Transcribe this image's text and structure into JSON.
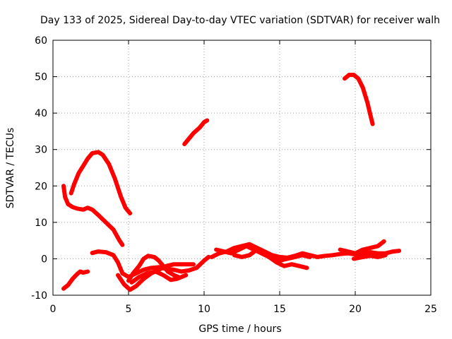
{
  "chart_data": {
    "type": "line",
    "title": "Day 133 of 2025, Sidereal Day-to-day VTEC variation (SDTVAR) for receiver walh",
    "xlabel": "GPS time / hours",
    "ylabel": "SDTVAR / TECUs",
    "xlim": [
      0,
      25
    ],
    "ylim": [
      -10,
      60
    ],
    "xticks": [
      "0",
      "5",
      "10",
      "15",
      "20",
      "25"
    ],
    "yticks": [
      "-10",
      "0",
      "10",
      "20",
      "30",
      "40",
      "50",
      "60"
    ],
    "grid": true,
    "series_color": "#ff0000",
    "series": [
      {
        "name": "arc-1",
        "points": [
          [
            0.7,
            -8.2
          ],
          [
            1.0,
            -7.2
          ],
          [
            1.3,
            -5.5
          ],
          [
            1.6,
            -4.2
          ],
          [
            1.8,
            -3.5
          ],
          [
            2.0,
            -3.8
          ],
          [
            2.3,
            -3.5
          ]
        ]
      },
      {
        "name": "arc-2",
        "points": [
          [
            0.7,
            20.0
          ],
          [
            0.8,
            17.0
          ],
          [
            1.0,
            15.0
          ],
          [
            1.3,
            14.2
          ],
          [
            1.6,
            13.8
          ],
          [
            2.0,
            13.5
          ],
          [
            2.3,
            14.0
          ],
          [
            2.6,
            13.5
          ],
          [
            3.0,
            12.0
          ],
          [
            3.5,
            10.0
          ],
          [
            4.0,
            8.0
          ],
          [
            4.4,
            5.0
          ],
          [
            4.6,
            3.8
          ]
        ]
      },
      {
        "name": "arc-3",
        "points": [
          [
            1.2,
            18.0
          ],
          [
            1.4,
            20.5
          ],
          [
            1.7,
            23.5
          ],
          [
            2.0,
            25.5
          ],
          [
            2.3,
            27.5
          ],
          [
            2.6,
            29.0
          ],
          [
            3.0,
            29.3
          ],
          [
            3.3,
            28.5
          ],
          [
            3.7,
            26.0
          ],
          [
            4.1,
            22.0
          ],
          [
            4.5,
            17.0
          ],
          [
            4.8,
            14.0
          ],
          [
            5.1,
            12.5
          ]
        ]
      },
      {
        "name": "arc-4",
        "points": [
          [
            2.6,
            1.6
          ],
          [
            3.0,
            2.0
          ],
          [
            3.5,
            1.8
          ],
          [
            4.0,
            1.0
          ],
          [
            4.3,
            -1.0
          ],
          [
            4.6,
            -4.0
          ],
          [
            5.0,
            -5.0
          ],
          [
            5.5,
            -4.0
          ],
          [
            6.0,
            -3.0
          ],
          [
            6.5,
            -2.5
          ],
          [
            7.0,
            -2.3
          ],
          [
            7.5,
            -2.8
          ],
          [
            8.0,
            -3.0
          ],
          [
            8.5,
            -3.5
          ],
          [
            9.0,
            -3.2
          ],
          [
            9.5,
            -2.5
          ],
          [
            10.0,
            -0.5
          ],
          [
            10.3,
            0.5
          ]
        ]
      },
      {
        "name": "arc-5",
        "points": [
          [
            4.3,
            -4.5
          ],
          [
            4.7,
            -7.0
          ],
          [
            5.1,
            -8.5
          ],
          [
            5.5,
            -7.5
          ],
          [
            6.0,
            -5.5
          ],
          [
            6.5,
            -4.0
          ],
          [
            7.0,
            -3.0
          ],
          [
            7.5,
            -2.0
          ],
          [
            8.0,
            -1.5
          ],
          [
            8.5,
            -1.5
          ],
          [
            9.0,
            -1.5
          ],
          [
            9.3,
            -1.5
          ]
        ]
      },
      {
        "name": "arc-6",
        "points": [
          [
            5.0,
            -6.0
          ],
          [
            5.3,
            -4.0
          ],
          [
            5.7,
            -2.0
          ],
          [
            6.0,
            0.0
          ],
          [
            6.3,
            0.8
          ],
          [
            6.7,
            0.5
          ],
          [
            7.0,
            -0.5
          ],
          [
            7.3,
            -2.0
          ],
          [
            7.6,
            -3.5
          ],
          [
            8.0,
            -4.5
          ],
          [
            8.3,
            -5.0
          ]
        ]
      },
      {
        "name": "arc-7",
        "points": [
          [
            5.2,
            -6.5
          ],
          [
            5.7,
            -5.0
          ],
          [
            6.2,
            -4.0
          ],
          [
            6.8,
            -3.5
          ],
          [
            7.3,
            -4.5
          ],
          [
            7.8,
            -5.8
          ],
          [
            8.2,
            -5.5
          ],
          [
            8.8,
            -4.5
          ]
        ]
      },
      {
        "name": "arc-8",
        "points": [
          [
            8.7,
            31.5
          ],
          [
            9.0,
            33.0
          ],
          [
            9.3,
            34.5
          ],
          [
            9.7,
            36.0
          ],
          [
            10.0,
            37.5
          ],
          [
            10.2,
            38.0
          ]
        ]
      },
      {
        "name": "arc-9",
        "points": [
          [
            10.5,
            0.5
          ],
          [
            11.0,
            1.5
          ],
          [
            11.5,
            2.0
          ],
          [
            12.0,
            3.0
          ],
          [
            12.5,
            3.5
          ],
          [
            13.0,
            4.0
          ],
          [
            13.5,
            3.0
          ],
          [
            14.0,
            2.0
          ],
          [
            14.5,
            1.0
          ],
          [
            15.0,
            0.5
          ],
          [
            15.5,
            0.3
          ],
          [
            16.0,
            0.8
          ],
          [
            16.5,
            1.5
          ],
          [
            17.0,
            1.0
          ],
          [
            17.5,
            0.5
          ],
          [
            18.0,
            0.8
          ],
          [
            18.5,
            1.0
          ],
          [
            19.0,
            1.3
          ],
          [
            19.5,
            1.5
          ],
          [
            20.0,
            1.2
          ],
          [
            20.5,
            1.5
          ],
          [
            21.0,
            1.8
          ],
          [
            21.5,
            1.5
          ],
          [
            22.0,
            1.5
          ],
          [
            22.5,
            2.0
          ],
          [
            22.9,
            2.2
          ]
        ]
      },
      {
        "name": "arc-10",
        "points": [
          [
            10.8,
            2.5
          ],
          [
            11.3,
            2.0
          ],
          [
            11.8,
            1.5
          ],
          [
            12.3,
            2.5
          ],
          [
            12.8,
            3.5
          ],
          [
            13.3,
            2.5
          ],
          [
            13.8,
            1.5
          ],
          [
            14.3,
            0.5
          ],
          [
            14.8,
            -1.0
          ],
          [
            15.3,
            -2.0
          ],
          [
            15.8,
            -1.5
          ],
          [
            16.3,
            -2.0
          ],
          [
            16.8,
            -2.5
          ]
        ]
      },
      {
        "name": "arc-11",
        "points": [
          [
            12.0,
            1.0
          ],
          [
            12.5,
            0.5
          ],
          [
            13.0,
            1.0
          ],
          [
            13.5,
            2.5
          ],
          [
            14.0,
            1.5
          ],
          [
            14.5,
            0.5
          ],
          [
            15.0,
            -0.5
          ],
          [
            15.5,
            0.0
          ],
          [
            16.0,
            0.5
          ],
          [
            16.5,
            1.0
          ],
          [
            17.0,
            0.5
          ]
        ]
      },
      {
        "name": "arc-12",
        "points": [
          [
            19.0,
            2.5
          ],
          [
            19.5,
            2.0
          ],
          [
            20.0,
            1.5
          ],
          [
            20.5,
            2.5
          ],
          [
            21.0,
            3.0
          ],
          [
            21.5,
            3.5
          ],
          [
            21.9,
            4.8
          ]
        ]
      },
      {
        "name": "arc-13",
        "points": [
          [
            19.9,
            0.0
          ],
          [
            20.5,
            0.5
          ],
          [
            21.0,
            0.8
          ],
          [
            21.5,
            0.5
          ],
          [
            22.0,
            1.0
          ]
        ]
      },
      {
        "name": "arc-14",
        "points": [
          [
            19.3,
            49.5
          ],
          [
            19.6,
            50.5
          ],
          [
            19.9,
            50.5
          ],
          [
            20.2,
            49.5
          ],
          [
            20.5,
            47.0
          ],
          [
            20.8,
            43.0
          ],
          [
            21.0,
            39.5
          ],
          [
            21.15,
            37.0
          ]
        ]
      }
    ]
  }
}
